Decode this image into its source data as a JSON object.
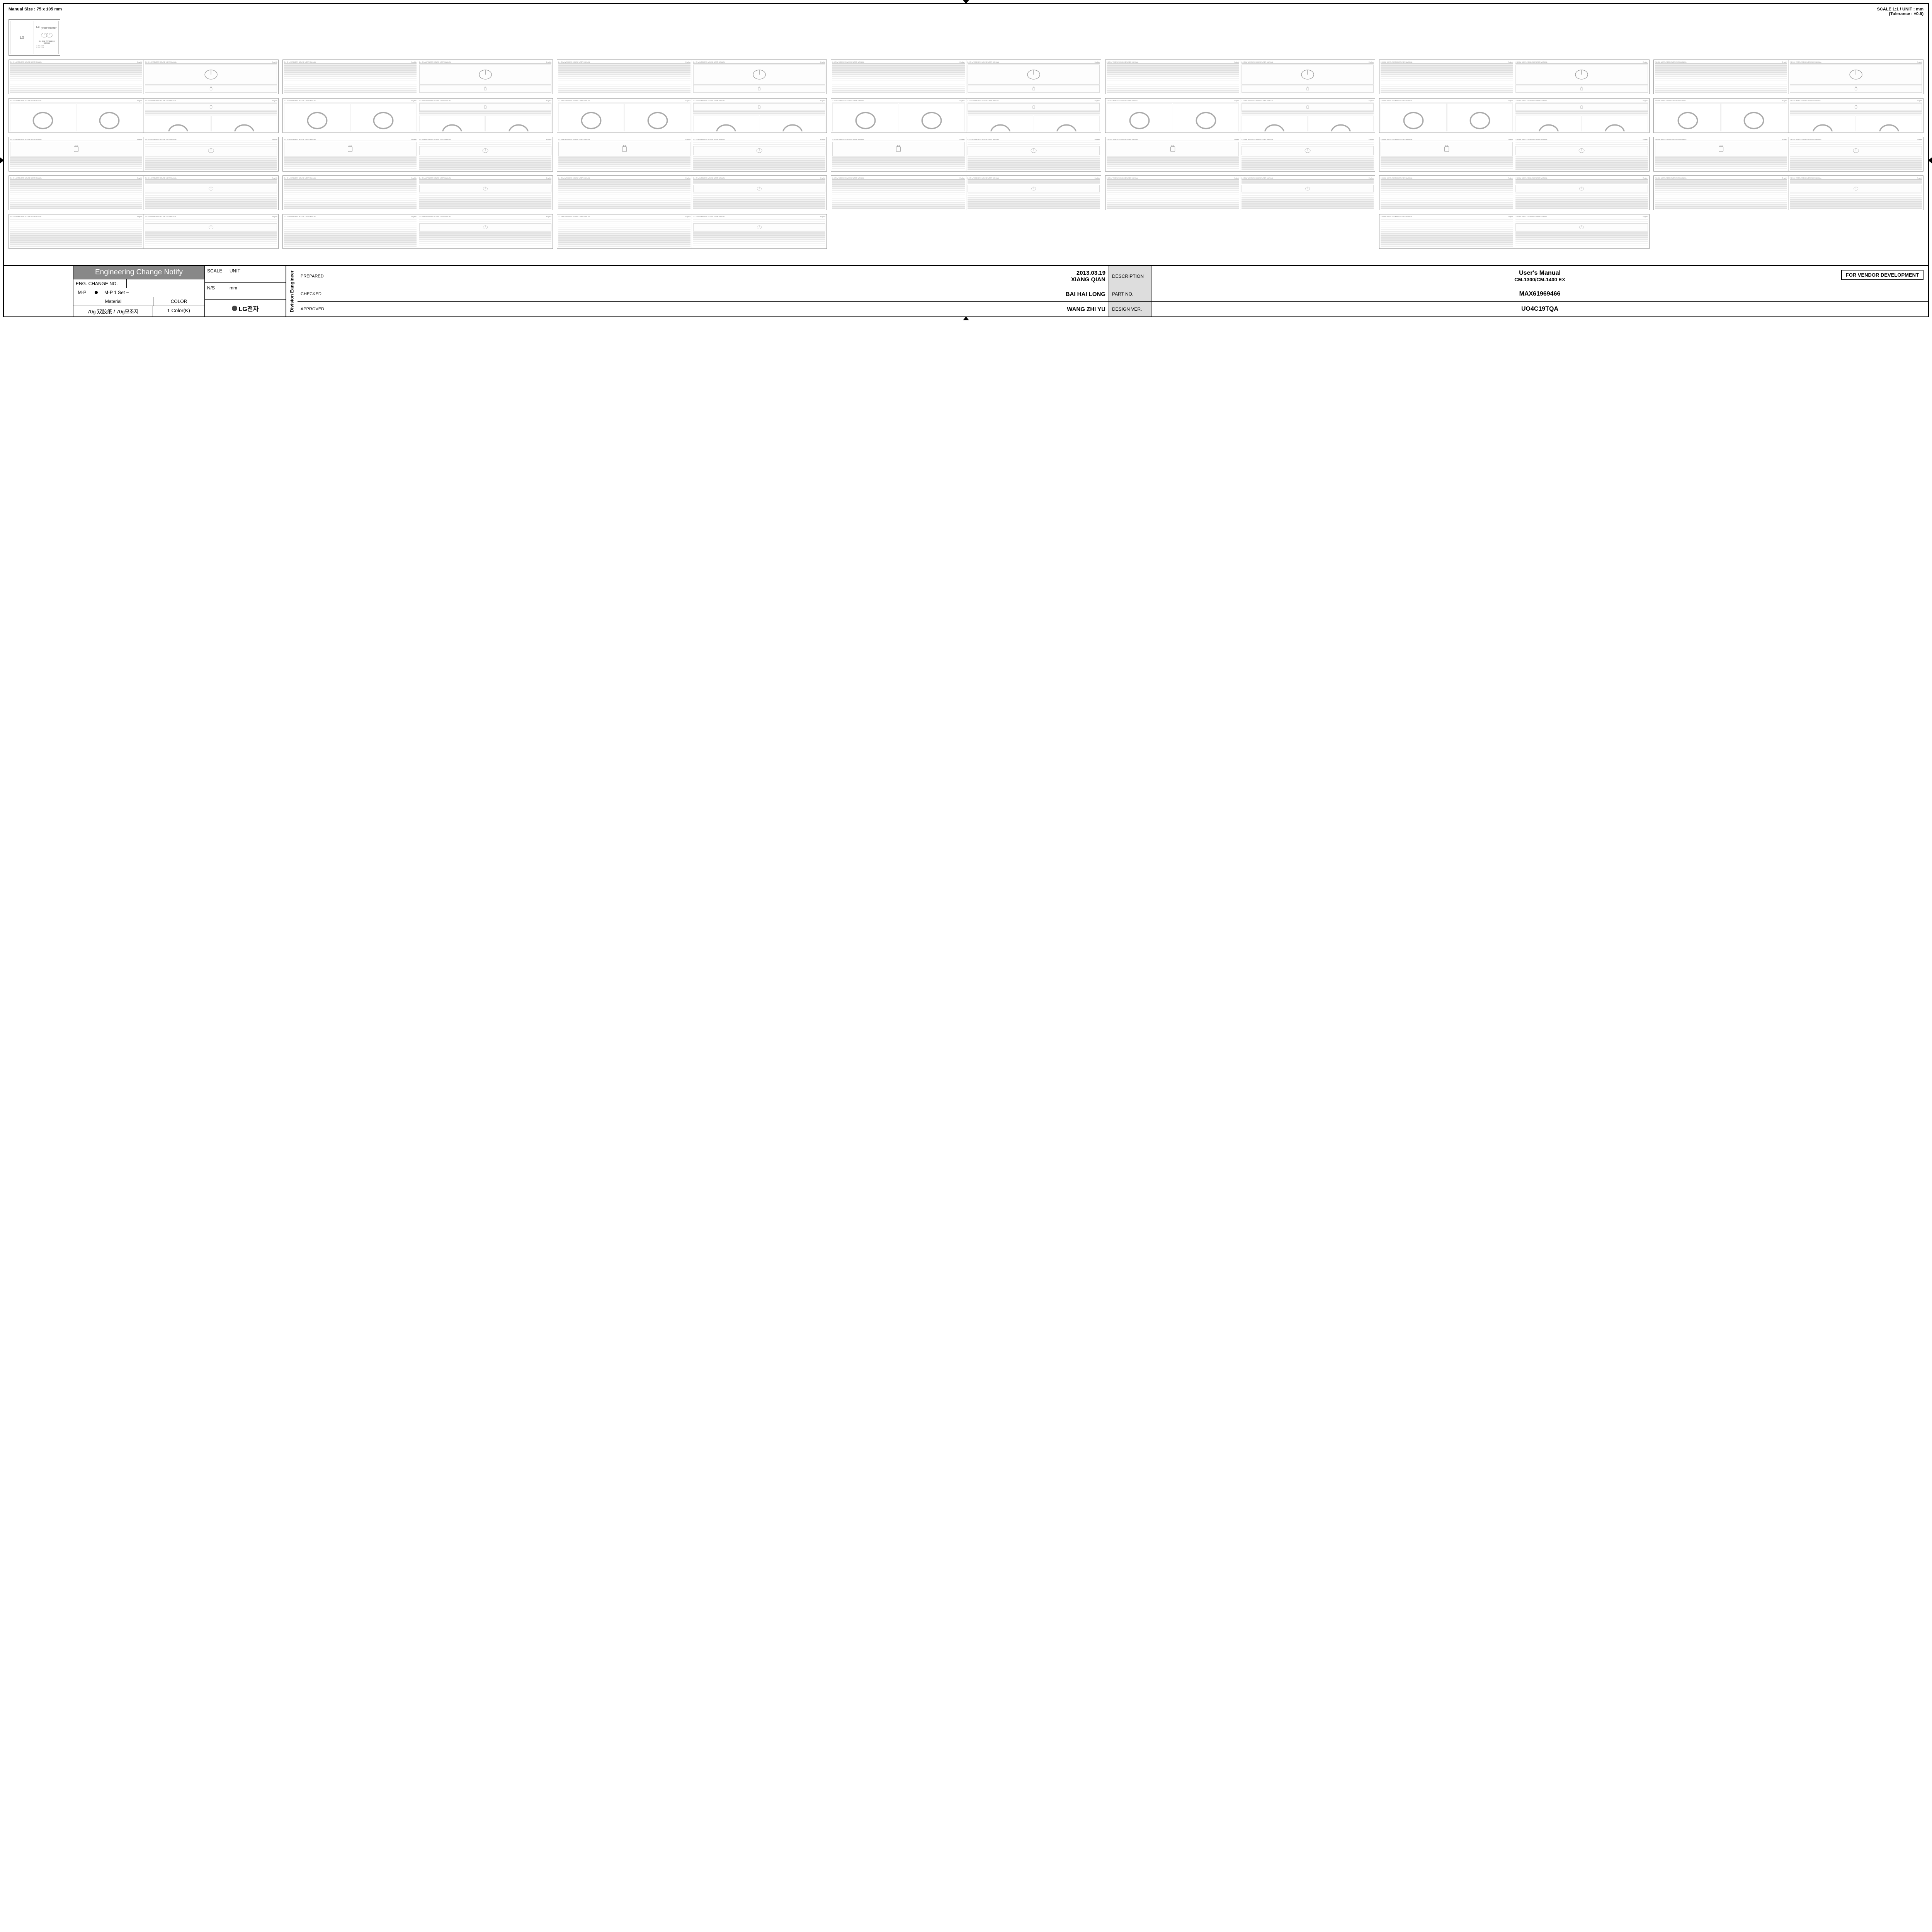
{
  "top": {
    "manual_size": "Manual Size : 75 x 105 mm",
    "scale_line1": "SCALE 1:1 /  UNIT : mm",
    "scale_line2": "(Tolerance : ±0.5)"
  },
  "cover": {
    "brand": "LG",
    "subbrand": "Life's Good",
    "user_manual": "USER MANUAL",
    "product": "2.4 GHz WIRELESS MOUSE",
    "model1": "● CM-1300",
    "model2": "● CM-1400"
  },
  "vendor_box": "FOR VENDOR DEVELOPMENT",
  "titleblock": {
    "ecn": "Engineering Change Notify",
    "eng_change_no_label": "ENG. CHANGE NO.",
    "eng_change_no_value": "",
    "mp": "M-P",
    "mp_set": "M-P  1 Set ~",
    "material_label": "Material",
    "color_label": "COLOR",
    "material_value": "70g  双胶纸   /  70g모조지",
    "color_value": "1 Color(K)",
    "scale_label": "SCALE",
    "scale_value": "UNIT",
    "ns_label": "N/S",
    "ns_value": "mm",
    "lg_text": "LG전자",
    "vert": "Division Eangineer",
    "prepared_label": "PREPARED",
    "prepared_date": "2013.03.19",
    "prepared_name": "XIANG QIAN",
    "checked_label": "CHECKED",
    "checked_name": "BAI HAI LONG",
    "approved_label": "APPROVED",
    "approved_name": "WANG ZHI YU",
    "description_label": "DESCRIPTION",
    "description_line1": "User's Manual",
    "description_line2": "CM-1300/CM-1400 EX",
    "partno_label": "PART NO.",
    "partno_value": "MAX61969466",
    "designver_label": "DESIGN VER.",
    "designver_value": "UO4C19TQA"
  },
  "rows": [
    {
      "type": "A",
      "count": 7,
      "skip": []
    },
    {
      "type": "B",
      "count": 7,
      "skip": []
    },
    {
      "type": "C",
      "count": 7,
      "skip": []
    },
    {
      "type": "D",
      "count": 7,
      "skip": []
    },
    {
      "type": "D",
      "count": 7,
      "skip": [
        3,
        4,
        6
      ]
    }
  ],
  "page_head": {
    "left": "2.4 GHz WIRELESS MOUSE USER MANUAL",
    "right": "English"
  }
}
